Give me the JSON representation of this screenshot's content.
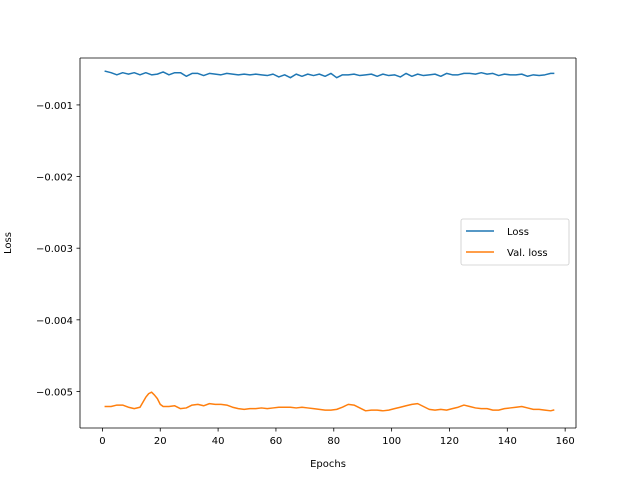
{
  "chart_data": {
    "type": "line",
    "title": "",
    "xlabel": "Epochs",
    "ylabel": "Loss",
    "xlim": [
      -7.75,
      163.75
    ],
    "ylim": [
      -0.00551,
      -0.000345
    ],
    "xticks": [
      0,
      20,
      40,
      60,
      80,
      100,
      120,
      140,
      160
    ],
    "xtick_labels": [
      "0",
      "20",
      "40",
      "60",
      "80",
      "100",
      "120",
      "140",
      "160"
    ],
    "yticks": [
      -0.001,
      -0.002,
      -0.003,
      -0.004,
      -0.005
    ],
    "ytick_labels": [
      "−0.001",
      "−0.002",
      "−0.003",
      "−0.004",
      "−0.005"
    ],
    "grid": false,
    "legend_position": "center-right",
    "series": [
      {
        "name": "Loss",
        "color": "#1f77b4",
        "x": [
          1,
          3,
          5,
          7,
          9,
          11,
          13,
          15,
          17,
          19,
          21,
          23,
          25,
          27,
          29,
          31,
          33,
          35,
          37,
          39,
          41,
          43,
          45,
          47,
          49,
          51,
          53,
          55,
          57,
          59,
          61,
          63,
          65,
          67,
          69,
          71,
          73,
          75,
          77,
          79,
          81,
          83,
          85,
          87,
          89,
          91,
          93,
          95,
          97,
          99,
          101,
          103,
          105,
          107,
          109,
          111,
          113,
          115,
          117,
          119,
          121,
          123,
          125,
          127,
          129,
          131,
          133,
          135,
          137,
          139,
          141,
          143,
          145,
          147,
          149,
          151,
          153,
          155,
          156
        ],
        "y": [
          -0.00053,
          -0.00055,
          -0.00058,
          -0.00055,
          -0.00057,
          -0.00055,
          -0.00058,
          -0.00055,
          -0.00058,
          -0.00057,
          -0.00054,
          -0.00058,
          -0.00055,
          -0.00055,
          -0.0006,
          -0.00056,
          -0.00056,
          -0.00059,
          -0.00056,
          -0.00057,
          -0.00058,
          -0.00056,
          -0.00057,
          -0.00058,
          -0.00057,
          -0.00058,
          -0.00057,
          -0.00058,
          -0.00059,
          -0.00057,
          -0.00061,
          -0.00058,
          -0.00062,
          -0.00057,
          -0.0006,
          -0.00057,
          -0.00059,
          -0.00057,
          -0.0006,
          -0.00056,
          -0.00062,
          -0.00058,
          -0.00058,
          -0.00057,
          -0.00059,
          -0.00058,
          -0.00057,
          -0.0006,
          -0.00057,
          -0.00059,
          -0.00058,
          -0.00061,
          -0.00056,
          -0.0006,
          -0.00057,
          -0.00059,
          -0.00058,
          -0.00057,
          -0.0006,
          -0.00056,
          -0.00058,
          -0.00058,
          -0.00056,
          -0.00056,
          -0.00057,
          -0.00055,
          -0.00057,
          -0.00056,
          -0.00059,
          -0.00057,
          -0.00058,
          -0.00058,
          -0.00057,
          -0.0006,
          -0.00058,
          -0.00059,
          -0.00058,
          -0.00056,
          -0.00056
        ]
      },
      {
        "name": "Val. loss",
        "color": "#ff7f0e",
        "x": [
          1,
          3,
          5,
          7,
          9,
          11,
          13,
          15,
          16,
          17,
          18,
          19,
          20,
          21,
          23,
          25,
          27,
          29,
          31,
          33,
          35,
          37,
          39,
          41,
          43,
          45,
          47,
          49,
          51,
          53,
          55,
          57,
          59,
          61,
          63,
          65,
          67,
          69,
          71,
          73,
          75,
          77,
          79,
          81,
          83,
          85,
          87,
          89,
          91,
          93,
          95,
          97,
          99,
          101,
          103,
          105,
          107,
          109,
          111,
          113,
          115,
          117,
          119,
          121,
          123,
          125,
          127,
          129,
          131,
          133,
          135,
          137,
          139,
          141,
          143,
          145,
          147,
          149,
          151,
          153,
          155,
          156
        ],
        "y": [
          -0.00521,
          -0.00521,
          -0.00519,
          -0.00519,
          -0.00522,
          -0.00524,
          -0.00522,
          -0.00508,
          -0.00503,
          -0.00501,
          -0.00505,
          -0.0051,
          -0.00518,
          -0.00521,
          -0.00521,
          -0.0052,
          -0.00524,
          -0.00523,
          -0.00519,
          -0.00518,
          -0.0052,
          -0.00517,
          -0.00518,
          -0.00518,
          -0.00519,
          -0.00522,
          -0.00524,
          -0.00525,
          -0.00524,
          -0.00524,
          -0.00523,
          -0.00524,
          -0.00523,
          -0.00522,
          -0.00522,
          -0.00522,
          -0.00523,
          -0.00522,
          -0.00523,
          -0.00524,
          -0.00525,
          -0.00526,
          -0.00526,
          -0.00525,
          -0.00522,
          -0.00518,
          -0.00519,
          -0.00523,
          -0.00527,
          -0.00526,
          -0.00526,
          -0.00527,
          -0.00526,
          -0.00524,
          -0.00522,
          -0.0052,
          -0.00518,
          -0.00517,
          -0.00521,
          -0.00525,
          -0.00526,
          -0.00525,
          -0.00526,
          -0.00524,
          -0.00522,
          -0.00519,
          -0.00521,
          -0.00523,
          -0.00524,
          -0.00524,
          -0.00526,
          -0.00526,
          -0.00524,
          -0.00523,
          -0.00522,
          -0.00521,
          -0.00523,
          -0.00525,
          -0.00525,
          -0.00526,
          -0.00527,
          -0.00526
        ]
      }
    ]
  }
}
